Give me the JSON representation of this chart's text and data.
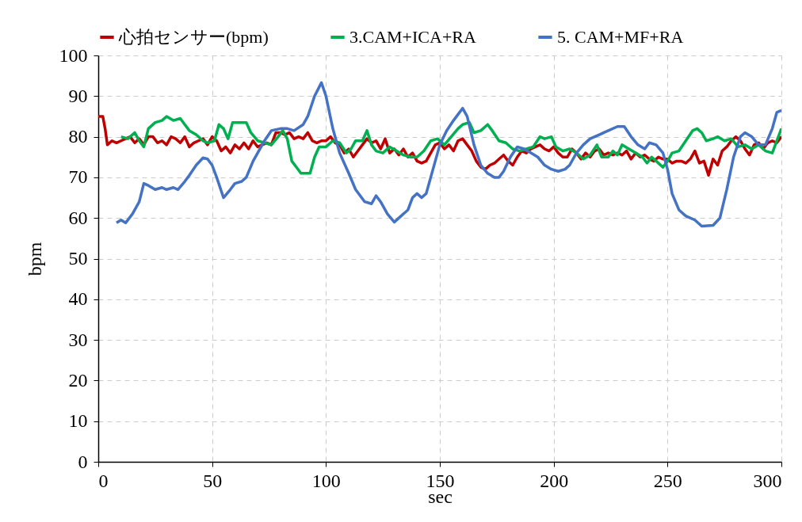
{
  "chart_data": {
    "type": "line",
    "xlabel": "sec",
    "ylabel": "bpm",
    "xlim": [
      0,
      300
    ],
    "xticks": [
      0,
      50,
      100,
      150,
      200,
      250,
      300
    ],
    "ylim": [
      0,
      100
    ],
    "yticks": [
      0,
      10,
      20,
      30,
      40,
      50,
      60,
      70,
      80,
      90,
      100
    ],
    "grid": true,
    "legend": "top",
    "series": [
      {
        "name": "心拍センサー(bpm)",
        "color": "#c00000",
        "x": [
          0,
          2,
          3,
          4,
          6,
          8,
          10,
          12,
          14,
          16,
          18,
          20,
          22,
          24,
          26,
          28,
          30,
          32,
          34,
          36,
          38,
          40,
          42,
          44,
          46,
          48,
          50,
          52,
          54,
          56,
          58,
          60,
          62,
          64,
          66,
          68,
          70,
          72,
          74,
          76,
          78,
          80,
          82,
          84,
          86,
          88,
          90,
          92,
          94,
          96,
          98,
          100,
          102,
          104,
          106,
          108,
          110,
          112,
          114,
          116,
          118,
          120,
          122,
          124,
          126,
          128,
          130,
          132,
          134,
          136,
          138,
          140,
          142,
          144,
          146,
          148,
          150,
          152,
          154,
          156,
          158,
          160,
          162,
          164,
          166,
          168,
          170,
          172,
          174,
          176,
          178,
          180,
          182,
          184,
          186,
          188,
          190,
          192,
          194,
          196,
          198,
          200,
          202,
          204,
          206,
          208,
          210,
          212,
          214,
          216,
          218,
          220,
          222,
          224,
          226,
          228,
          230,
          232,
          234,
          236,
          238,
          240,
          242,
          244,
          246,
          248,
          250,
          252,
          254,
          256,
          258,
          260,
          262,
          264,
          266,
          268,
          270,
          272,
          274,
          276,
          278,
          280,
          282,
          284,
          286,
          288,
          290,
          292,
          294,
          296,
          298,
          300
        ],
        "values": [
          85,
          85,
          82,
          78,
          79,
          78.5,
          79,
          79.5,
          80,
          78.5,
          79.5,
          78,
          80,
          80,
          78.5,
          79,
          78,
          80,
          79.5,
          78.5,
          80,
          77.5,
          78.5,
          79,
          79.5,
          78,
          80,
          79,
          76.5,
          77.5,
          76,
          78,
          77,
          78.5,
          77,
          79,
          77.5,
          78,
          78.5,
          78,
          81,
          81,
          80.5,
          81,
          79.5,
          80,
          79.5,
          81,
          79,
          78.5,
          79,
          79,
          80,
          78.5,
          78,
          76,
          77,
          75,
          76.5,
          78,
          79.5,
          78.5,
          79,
          77,
          79.5,
          76,
          77,
          75.5,
          77,
          75,
          76,
          74,
          73.5,
          74,
          76,
          78,
          78.5,
          77,
          78,
          76.5,
          79,
          79.5,
          78,
          76.5,
          74,
          72.5,
          72,
          73,
          73.5,
          74.5,
          75.5,
          74,
          73,
          75,
          76.5,
          76,
          77,
          77.5,
          78,
          77,
          76.5,
          77.5,
          76,
          75,
          75,
          77,
          76,
          74.5,
          76,
          75,
          76.5,
          77,
          75.5,
          76,
          75.5,
          76,
          75.5,
          76.5,
          74.5,
          76,
          75,
          75.5,
          74.5,
          74,
          75,
          74.5,
          74.5,
          73.5,
          74,
          74,
          73.5,
          74.5,
          76.5,
          73.5,
          74,
          70.5,
          74.5,
          73,
          76.5,
          77.5,
          79,
          80,
          79,
          77,
          75.5,
          78,
          78.5,
          77,
          78.5,
          79,
          78.5,
          80
        ]
      },
      {
        "name": "3.CAM+ICA+RA",
        "color": "#00b050",
        "x": [
          10,
          13,
          16,
          18,
          20,
          22,
          25,
          28,
          30,
          33,
          36,
          38,
          40,
          43,
          46,
          48,
          51,
          53,
          55,
          57,
          59,
          62,
          65,
          67,
          70,
          73,
          76,
          79,
          81,
          83,
          85,
          87,
          89,
          91,
          93,
          95,
          97,
          100,
          103,
          106,
          109,
          111,
          113,
          116,
          118,
          120,
          122,
          125,
          128,
          131,
          134,
          137,
          140,
          143,
          146,
          149,
          152,
          155,
          158,
          160,
          163,
          165,
          168,
          171,
          173,
          176,
          179,
          182,
          185,
          188,
          191,
          194,
          196,
          199,
          201,
          204,
          207,
          210,
          213,
          216,
          219,
          221,
          224,
          226,
          228,
          230,
          233,
          236,
          239,
          241,
          243,
          245,
          248,
          250,
          252,
          255,
          258,
          261,
          263,
          265,
          267,
          270,
          272,
          275,
          278,
          281,
          284,
          287,
          290,
          293,
          296,
          298,
          300
        ],
        "values": [
          80,
          79.5,
          81,
          79,
          77.5,
          82,
          83.5,
          84,
          85,
          84,
          84.5,
          83,
          81.5,
          80.5,
          79,
          78.5,
          79,
          83,
          82,
          79.5,
          83.5,
          83.5,
          83.5,
          81,
          79,
          78.5,
          78,
          80,
          81.5,
          79.5,
          74,
          72.5,
          71,
          71,
          71,
          75,
          77.5,
          77.5,
          79,
          78.5,
          76,
          77,
          79,
          79,
          81.5,
          78,
          76.5,
          76,
          77.5,
          76.5,
          75.5,
          75,
          75,
          76.5,
          79,
          79.5,
          78,
          80,
          82,
          83,
          83.5,
          81,
          81.5,
          83,
          81.5,
          79,
          78.5,
          77,
          76.5,
          77,
          77.5,
          80,
          79.5,
          80,
          77.5,
          76.5,
          77,
          76,
          74.5,
          75.5,
          78,
          75,
          75,
          76.5,
          75.5,
          78,
          77,
          76,
          75,
          73.5,
          75,
          74,
          72.5,
          74,
          76,
          76.5,
          79,
          81.5,
          82,
          81,
          79,
          79.5,
          80,
          79,
          79.5,
          77.5,
          78,
          77,
          78,
          76.5,
          76,
          79,
          82
        ]
      },
      {
        "name": "5. CAM+MF+RA",
        "color": "#4472c4",
        "x": [
          8,
          10,
          12,
          15,
          18,
          20,
          22,
          25,
          28,
          30,
          33,
          35,
          38,
          40,
          43,
          46,
          48,
          50,
          52,
          55,
          58,
          60,
          63,
          65,
          68,
          70,
          73,
          76,
          80,
          83,
          86,
          90,
          92,
          95,
          98,
          100,
          103,
          106,
          110,
          113,
          117,
          120,
          122,
          124,
          127,
          130,
          133,
          136,
          138,
          140,
          142,
          144,
          147,
          150,
          153,
          156,
          158,
          160,
          162,
          165,
          168,
          171,
          174,
          176,
          178,
          181,
          184,
          187,
          190,
          193,
          196,
          199,
          202,
          205,
          207,
          210,
          213,
          216,
          220,
          224,
          228,
          231,
          234,
          237,
          240,
          242,
          245,
          248,
          250,
          252,
          255,
          258,
          262,
          265,
          270,
          273,
          276,
          279,
          282,
          284,
          287,
          290,
          293,
          296,
          298,
          300
        ],
        "values": [
          58.8,
          59.5,
          58.8,
          61,
          64,
          68.5,
          68,
          67,
          67.5,
          67,
          67.5,
          67,
          69,
          70.5,
          73,
          74.8,
          74.5,
          73,
          70,
          65,
          67,
          68.5,
          69,
          70,
          74,
          76,
          79,
          81.5,
          82,
          82,
          81.5,
          83,
          85,
          90,
          93.3,
          90,
          82,
          76,
          71,
          67,
          64,
          63.5,
          65.5,
          64,
          61,
          59,
          60.5,
          62,
          65,
          66,
          65,
          66,
          72,
          78,
          81.5,
          84,
          85.5,
          87,
          85,
          78,
          73,
          71,
          70,
          70,
          71.5,
          75,
          77.5,
          77,
          76,
          75,
          73,
          72,
          71.5,
          72,
          73,
          76,
          78,
          79.5,
          80.5,
          81.5,
          82.5,
          82.5,
          80,
          78,
          77,
          78.5,
          78,
          76,
          72,
          66,
          62,
          60.5,
          59.5,
          58,
          58.2,
          60,
          67,
          75,
          80,
          81,
          80,
          78,
          78,
          82,
          86,
          86.5
        ]
      }
    ]
  }
}
